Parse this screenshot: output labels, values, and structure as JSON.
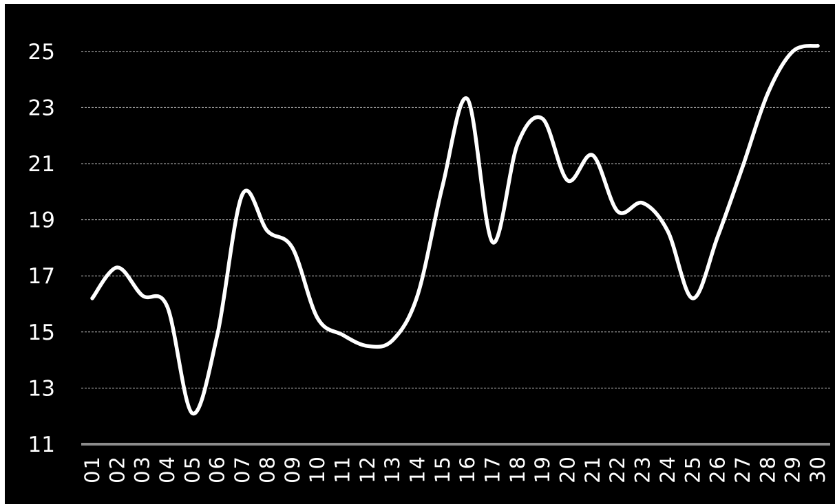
{
  "chart_data": {
    "type": "line",
    "title": "",
    "xlabel": "",
    "ylabel": "",
    "categories": [
      "01",
      "02",
      "03",
      "04",
      "05",
      "06",
      "07",
      "08",
      "09",
      "10",
      "11",
      "12",
      "13",
      "14",
      "15",
      "16",
      "17",
      "18",
      "19",
      "20",
      "21",
      "22",
      "23",
      "24",
      "25",
      "26",
      "27",
      "28",
      "29",
      "30"
    ],
    "series": [
      {
        "values": [
          16.2,
          17.3,
          16.3,
          15.9,
          12.1,
          14.9,
          19.9,
          18.6,
          18.0,
          15.5,
          14.9,
          14.5,
          14.7,
          16.3,
          20.2,
          23.3,
          18.2,
          21.7,
          22.6,
          20.4,
          21.3,
          19.3,
          19.6,
          18.6,
          16.2,
          18.4,
          20.9,
          23.5,
          25.0,
          25.2
        ],
        "color": "#ffffff"
      }
    ],
    "ylim": [
      11,
      26.5
    ],
    "yticks": [
      "11",
      "13",
      "15",
      "17",
      "19",
      "21",
      "23",
      "25"
    ],
    "grid": true,
    "background": "#000000",
    "baseline_color": "#8c8c8c",
    "grid_color": "#bdbdbd"
  }
}
